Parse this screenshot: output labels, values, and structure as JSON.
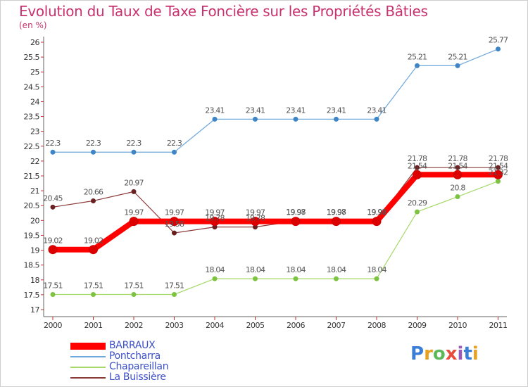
{
  "header": {
    "title": "Evolution du Taux de Taxe Foncière sur les Propriétés Bâties",
    "unit": "(en %)"
  },
  "logo": {
    "letters": [
      "P",
      "r",
      "o",
      "x",
      "i",
      "t",
      "i"
    ],
    "colors": [
      "#3a7fd5",
      "#e8a020",
      "#5cb85c",
      "#e84c3d",
      "#9b59b6",
      "#3a7fd5",
      "#e8a020"
    ]
  },
  "chart_data": {
    "type": "line",
    "title": "Evolution du Taux de Taxe Foncière sur les Propriétés Bâties",
    "ylabel": "(en %)",
    "xlabel": "",
    "ylim": [
      17,
      26
    ],
    "yticks": [
      "17",
      "17.5",
      "18",
      "18.5",
      "19",
      "19.5",
      "20",
      "20.5",
      "21",
      "21.5",
      "22",
      "22.5",
      "23",
      "23.5",
      "24",
      "24.5",
      "25",
      "25.5",
      "26"
    ],
    "categories": [
      "2000",
      "2001",
      "2002",
      "2003",
      "2004",
      "2005",
      "2006",
      "2007",
      "2008",
      "2009",
      "2010",
      "2011"
    ],
    "grid": false,
    "legend_position": "bottom-left",
    "series": [
      {
        "name": "Pontcharra",
        "color": "#6fa8dc",
        "marker": "#3d85c6",
        "style": "thin",
        "values": [
          22.3,
          22.3,
          22.3,
          22.3,
          23.41,
          23.41,
          23.41,
          23.41,
          23.41,
          25.21,
          25.21,
          25.77
        ],
        "labels": [
          "22.3",
          "22.3",
          "22.3",
          "22.3",
          "23.41",
          "23.41",
          "23.41",
          "23.41",
          "23.41",
          "25.21",
          "25.21",
          "25.77"
        ]
      },
      {
        "name": "Chapareillan",
        "color": "#a6d96a",
        "marker": "#7cc342",
        "style": "thin",
        "values": [
          17.51,
          17.51,
          17.51,
          17.51,
          18.04,
          18.04,
          18.04,
          18.04,
          18.04,
          20.29,
          20.8,
          21.32
        ],
        "labels": [
          "17.51",
          "17.51",
          "17.51",
          "17.51",
          "18.04",
          "18.04",
          "18.04",
          "18.04",
          "18.04",
          "20.29",
          "20.8",
          "21.32"
        ]
      },
      {
        "name": "La Buissière",
        "color": "#8b3a3a",
        "marker": "#6b1f1f",
        "style": "thin",
        "values": [
          20.45,
          20.66,
          20.97,
          19.58,
          19.78,
          19.78,
          19.98,
          19.98,
          19.98,
          21.78,
          21.78,
          21.78
        ],
        "labels": [
          "20.45",
          "20.66",
          "20.97",
          "19.58",
          "19.78",
          "19.78",
          "19.98",
          "19.98",
          "19.98",
          "21.78",
          "21.78",
          "21.78"
        ]
      },
      {
        "name": "BARRAUX",
        "color": "#ff0000",
        "marker": "#dd0000",
        "style": "thick",
        "values": [
          19.02,
          19.02,
          19.97,
          19.97,
          19.97,
          19.97,
          19.97,
          19.97,
          19.97,
          21.54,
          21.54,
          21.54
        ],
        "labels": [
          "19.02",
          "19.02",
          "19.97",
          "19.97",
          "19.97",
          "19.97",
          "19.97",
          "19.97",
          "19.97",
          "21.54",
          "21.54",
          "21.54"
        ]
      }
    ],
    "legend_order": [
      "BARRAUX",
      "Pontcharra",
      "Chapareillan",
      "La Buissière"
    ]
  }
}
